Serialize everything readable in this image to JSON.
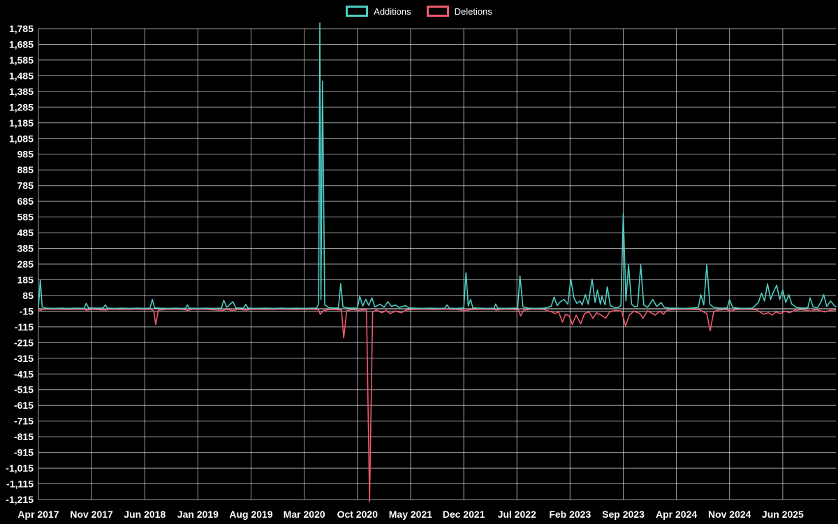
{
  "legend": {
    "additions": "Additions",
    "deletions": "Deletions"
  },
  "colors": {
    "additions": "#4ecdc4",
    "deletions": "#f0596e",
    "grid": "rgba(255,255,255,0.62)",
    "zero_axis": "#c8c8c8",
    "text": "#ffffff",
    "background": "#000000"
  },
  "chart_data": {
    "type": "line",
    "title": "",
    "legend_position": "top",
    "grid": true,
    "y_max": 1785,
    "y_min": -1215,
    "y_step": 100,
    "x_domain_months": [
      0,
      105
    ],
    "x_tick_months": [
      0,
      7,
      14,
      21,
      28,
      35,
      42,
      49,
      56,
      63,
      70,
      77,
      84,
      91,
      98
    ],
    "x_tick_labels": [
      "Apr 2017",
      "Nov 2017",
      "Jun 2018",
      "Jan 2019",
      "Aug 2019",
      "Mar 2020",
      "Oct 2020",
      "May 2021",
      "Dec 2021",
      "Jul 2022",
      "Feb 2023",
      "Sep 2023",
      "Apr 2024",
      "Nov 2024",
      "Jun 2025"
    ],
    "series": [
      {
        "name": "Additions",
        "color_key": "additions",
        "points": [
          [
            0,
            5
          ],
          [
            0.25,
            185
          ],
          [
            0.5,
            12
          ],
          [
            1,
            4
          ],
          [
            2,
            3
          ],
          [
            3,
            4
          ],
          [
            4,
            3
          ],
          [
            5,
            4
          ],
          [
            6,
            3
          ],
          [
            6.3,
            35
          ],
          [
            6.6,
            6
          ],
          [
            7.5,
            4
          ],
          [
            8.5,
            4
          ],
          [
            8.8,
            25
          ],
          [
            9.1,
            4
          ],
          [
            10,
            3
          ],
          [
            11,
            4
          ],
          [
            12,
            3
          ],
          [
            13,
            4
          ],
          [
            14,
            3
          ],
          [
            14.7,
            4
          ],
          [
            15,
            60
          ],
          [
            15.3,
            6
          ],
          [
            16,
            4
          ],
          [
            17,
            3
          ],
          [
            18,
            4
          ],
          [
            19,
            3
          ],
          [
            19.4,
            4
          ],
          [
            19.6,
            25
          ],
          [
            19.9,
            4
          ],
          [
            21,
            3
          ],
          [
            22,
            4
          ],
          [
            23,
            3
          ],
          [
            24.1,
            4
          ],
          [
            24.4,
            55
          ],
          [
            24.8,
            10
          ],
          [
            25.6,
            45
          ],
          [
            26,
            6
          ],
          [
            27,
            4
          ],
          [
            27.3,
            28
          ],
          [
            27.6,
            4
          ],
          [
            28.5,
            3
          ],
          [
            30,
            4
          ],
          [
            31,
            3
          ],
          [
            32,
            4
          ],
          [
            33,
            3
          ],
          [
            34,
            4
          ],
          [
            35,
            3
          ],
          [
            36,
            4
          ],
          [
            36.6,
            4
          ],
          [
            36.9,
            30
          ],
          [
            37.05,
            1820
          ],
          [
            37.2,
            60
          ],
          [
            37.4,
            1450
          ],
          [
            37.7,
            25
          ],
          [
            38.2,
            8
          ],
          [
            39,
            5
          ],
          [
            39.5,
            6
          ],
          [
            39.8,
            160
          ],
          [
            40.1,
            12
          ],
          [
            40.7,
            6
          ],
          [
            41.4,
            5
          ],
          [
            42,
            5
          ],
          [
            42.3,
            80
          ],
          [
            42.7,
            18
          ],
          [
            43.1,
            60
          ],
          [
            43.5,
            22
          ],
          [
            43.9,
            70
          ],
          [
            44.3,
            12
          ],
          [
            45,
            30
          ],
          [
            45.5,
            10
          ],
          [
            46,
            45
          ],
          [
            46.5,
            15
          ],
          [
            47,
            25
          ],
          [
            47.5,
            8
          ],
          [
            48.3,
            20
          ],
          [
            48.8,
            6
          ],
          [
            49.5,
            4
          ],
          [
            50.5,
            3
          ],
          [
            51.5,
            4
          ],
          [
            52.5,
            3
          ],
          [
            53.5,
            4
          ],
          [
            53.8,
            25
          ],
          [
            54.1,
            4
          ],
          [
            55,
            3
          ],
          [
            56,
            5
          ],
          [
            56.3,
            230
          ],
          [
            56.6,
            18
          ],
          [
            56.9,
            60
          ],
          [
            57.2,
            6
          ],
          [
            58,
            4
          ],
          [
            59,
            3
          ],
          [
            60,
            4
          ],
          [
            60.2,
            30
          ],
          [
            60.5,
            4
          ],
          [
            61.5,
            3
          ],
          [
            62.5,
            4
          ],
          [
            63.1,
            5
          ],
          [
            63.4,
            210
          ],
          [
            63.8,
            12
          ],
          [
            64.5,
            4
          ],
          [
            65.5,
            3
          ],
          [
            66.5,
            4
          ],
          [
            67.5,
            15
          ],
          [
            67.9,
            75
          ],
          [
            68.3,
            20
          ],
          [
            68.6,
            40
          ],
          [
            69.2,
            60
          ],
          [
            69.7,
            30
          ],
          [
            70.1,
            190
          ],
          [
            70.5,
            70
          ],
          [
            70.9,
            35
          ],
          [
            71.3,
            50
          ],
          [
            71.6,
            25
          ],
          [
            72,
            90
          ],
          [
            72.4,
            30
          ],
          [
            72.9,
            190
          ],
          [
            73.3,
            40
          ],
          [
            73.6,
            120
          ],
          [
            74,
            30
          ],
          [
            74.2,
            80
          ],
          [
            74.6,
            25
          ],
          [
            74.9,
            140
          ],
          [
            75.3,
            20
          ],
          [
            75.8,
            10
          ],
          [
            76.3,
            8
          ],
          [
            76.7,
            20
          ],
          [
            77,
            610
          ],
          [
            77.35,
            50
          ],
          [
            77.7,
            280
          ],
          [
            78.1,
            30
          ],
          [
            78.5,
            12
          ],
          [
            78.9,
            18
          ],
          [
            79.3,
            280
          ],
          [
            79.7,
            25
          ],
          [
            80.2,
            10
          ],
          [
            80.9,
            60
          ],
          [
            81.4,
            15
          ],
          [
            82,
            40
          ],
          [
            82.4,
            10
          ],
          [
            83,
            5
          ],
          [
            84,
            4
          ],
          [
            85,
            3
          ],
          [
            86,
            4
          ],
          [
            86.9,
            10
          ],
          [
            87.2,
            90
          ],
          [
            87.6,
            25
          ],
          [
            88,
            280
          ],
          [
            88.4,
            30
          ],
          [
            88.8,
            12
          ],
          [
            89.5,
            5
          ],
          [
            90.2,
            4
          ],
          [
            90.7,
            6
          ],
          [
            91,
            60
          ],
          [
            91.4,
            8
          ],
          [
            92.2,
            4
          ],
          [
            93,
            3
          ],
          [
            94,
            4
          ],
          [
            94.8,
            40
          ],
          [
            95.2,
            100
          ],
          [
            95.6,
            50
          ],
          [
            96,
            160
          ],
          [
            96.4,
            60
          ],
          [
            96.8,
            110
          ],
          [
            97.2,
            150
          ],
          [
            97.6,
            60
          ],
          [
            98,
            120
          ],
          [
            98.4,
            40
          ],
          [
            98.8,
            90
          ],
          [
            99.2,
            30
          ],
          [
            99.8,
            10
          ],
          [
            100.5,
            5
          ],
          [
            101.3,
            6
          ],
          [
            101.6,
            70
          ],
          [
            102,
            12
          ],
          [
            102.6,
            8
          ],
          [
            103,
            40
          ],
          [
            103.4,
            90
          ],
          [
            103.8,
            15
          ],
          [
            104.3,
            50
          ],
          [
            104.8,
            20
          ],
          [
            105,
            12
          ]
        ]
      },
      {
        "name": "Deletions",
        "color_key": "deletions",
        "points": [
          [
            0,
            -3
          ],
          [
            0.25,
            -10
          ],
          [
            0.6,
            -3
          ],
          [
            2,
            -3
          ],
          [
            4,
            -4
          ],
          [
            6,
            -3
          ],
          [
            6.4,
            -10
          ],
          [
            7,
            -3
          ],
          [
            8.8,
            -8
          ],
          [
            9.3,
            -3
          ],
          [
            11,
            -4
          ],
          [
            13,
            -3
          ],
          [
            14.9,
            -4
          ],
          [
            15.2,
            -20
          ],
          [
            15.45,
            -100
          ],
          [
            15.8,
            -8
          ],
          [
            17,
            -3
          ],
          [
            19,
            -4
          ],
          [
            19.7,
            -10
          ],
          [
            20.2,
            -3
          ],
          [
            22,
            -3
          ],
          [
            24.3,
            -10
          ],
          [
            24.8,
            -4
          ],
          [
            25.7,
            -12
          ],
          [
            26.2,
            -3
          ],
          [
            27.4,
            -8
          ],
          [
            28,
            -3
          ],
          [
            30,
            -4
          ],
          [
            32,
            -3
          ],
          [
            34,
            -4
          ],
          [
            36,
            -3
          ],
          [
            36.9,
            -5
          ],
          [
            37.1,
            -35
          ],
          [
            37.5,
            -12
          ],
          [
            38.2,
            -5
          ],
          [
            39,
            -4
          ],
          [
            39.9,
            -8
          ],
          [
            40.2,
            -185
          ],
          [
            40.6,
            -12
          ],
          [
            41.3,
            -5
          ],
          [
            42.2,
            -10
          ],
          [
            42.8,
            -6
          ],
          [
            43.2,
            -8
          ],
          [
            43.6,
            -1230
          ],
          [
            44,
            -20
          ],
          [
            44.5,
            -8
          ],
          [
            45.2,
            -25
          ],
          [
            45.8,
            -10
          ],
          [
            46.3,
            -30
          ],
          [
            47,
            -15
          ],
          [
            47.8,
            -25
          ],
          [
            48.4,
            -8
          ],
          [
            49.3,
            -4
          ],
          [
            50.5,
            -3
          ],
          [
            52,
            -4
          ],
          [
            53.5,
            -3
          ],
          [
            55,
            -4
          ],
          [
            56.3,
            -12
          ],
          [
            56.8,
            -5
          ],
          [
            58,
            -3
          ],
          [
            60,
            -4
          ],
          [
            60.3,
            -8
          ],
          [
            61,
            -3
          ],
          [
            62.5,
            -4
          ],
          [
            63.2,
            -6
          ],
          [
            63.5,
            -45
          ],
          [
            63.9,
            -8
          ],
          [
            65,
            -3
          ],
          [
            66.5,
            -4
          ],
          [
            67.6,
            -20
          ],
          [
            68,
            -30
          ],
          [
            68.5,
            -20
          ],
          [
            69,
            -85
          ],
          [
            69.4,
            -35
          ],
          [
            69.9,
            -45
          ],
          [
            70.3,
            -100
          ],
          [
            70.8,
            -40
          ],
          [
            71.4,
            -95
          ],
          [
            71.9,
            -30
          ],
          [
            72.5,
            -20
          ],
          [
            73,
            -60
          ],
          [
            73.5,
            -25
          ],
          [
            74.1,
            -40
          ],
          [
            74.7,
            -60
          ],
          [
            75.2,
            -20
          ],
          [
            75.9,
            -10
          ],
          [
            76.8,
            -15
          ],
          [
            77.3,
            -110
          ],
          [
            77.8,
            -40
          ],
          [
            78.4,
            -15
          ],
          [
            79.2,
            -30
          ],
          [
            79.6,
            -60
          ],
          [
            80.2,
            -12
          ],
          [
            81.2,
            -40
          ],
          [
            81.8,
            -15
          ],
          [
            82.3,
            -35
          ],
          [
            82.8,
            -8
          ],
          [
            84,
            -4
          ],
          [
            85.5,
            -3
          ],
          [
            87,
            -5
          ],
          [
            87.4,
            -15
          ],
          [
            88,
            -30
          ],
          [
            88.45,
            -140
          ],
          [
            88.9,
            -20
          ],
          [
            89.4,
            -8
          ],
          [
            90.5,
            -4
          ],
          [
            91.2,
            -15
          ],
          [
            91.7,
            -5
          ],
          [
            93,
            -3
          ],
          [
            94.5,
            -5
          ],
          [
            95,
            -20
          ],
          [
            95.5,
            -35
          ],
          [
            96.1,
            -25
          ],
          [
            96.6,
            -40
          ],
          [
            97.1,
            -20
          ],
          [
            97.7,
            -30
          ],
          [
            98.3,
            -15
          ],
          [
            98.9,
            -25
          ],
          [
            99.5,
            -10
          ],
          [
            100.5,
            -5
          ],
          [
            101.7,
            -15
          ],
          [
            102.4,
            -5
          ],
          [
            103.5,
            -20
          ],
          [
            104.2,
            -10
          ],
          [
            105,
            -6
          ]
        ]
      }
    ]
  }
}
